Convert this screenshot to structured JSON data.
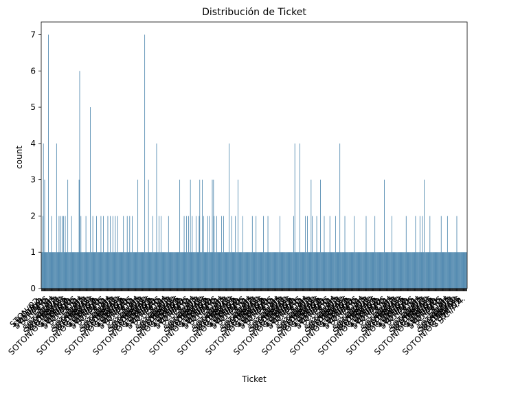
{
  "chart_data": {
    "type": "bar",
    "title": "Distribución de Ticket",
    "xlabel": "Ticket",
    "ylabel": "count",
    "ylim": [
      0,
      7.35
    ],
    "yticks": [
      0,
      1,
      2,
      3,
      4,
      5,
      6,
      7
    ],
    "bar_color": "#3274a1",
    "grid": false,
    "legend": "none",
    "category_count": 681,
    "x_tick_labels_note": "681 rotated ticket labels overlap into an illegible band; legible fragments below",
    "visible_tick_label_fragments": [
      "STON/O2.",
      "S.C./A.4.",
      "SOTON/O.",
      "STON/O 2.",
      "SC/PARIS",
      "F.C.C.",
      "C.A.",
      "SC/AH",
      "A/5",
      "SOTON/OQ",
      "STON/O2 3",
      "SOTON/O.Q.",
      "SOTON/O2",
      "SC/A.3",
      "SOTON/OQ 392076"
    ],
    "notable_counts": [
      {
        "category_index": 3,
        "value": 4
      },
      {
        "category_index": 5,
        "value": 3
      },
      {
        "category_index": 11,
        "value": 7
      },
      {
        "category_index": 24,
        "value": 4
      },
      {
        "category_index": 42,
        "value": 3
      },
      {
        "category_index": 60,
        "value": 3
      },
      {
        "category_index": 61,
        "value": 6
      },
      {
        "category_index": 78,
        "value": 5
      },
      {
        "category_index": 154,
        "value": 3
      },
      {
        "category_index": 165,
        "value": 7
      },
      {
        "category_index": 171,
        "value": 3
      },
      {
        "category_index": 184,
        "value": 4
      },
      {
        "category_index": 221,
        "value": 3
      },
      {
        "category_index": 238,
        "value": 3
      },
      {
        "category_index": 253,
        "value": 3
      },
      {
        "category_index": 257,
        "value": 3
      },
      {
        "category_index": 273,
        "value": 3
      },
      {
        "category_index": 275,
        "value": 3
      },
      {
        "category_index": 300,
        "value": 4
      },
      {
        "category_index": 314,
        "value": 3
      },
      {
        "category_index": 405,
        "value": 4
      },
      {
        "category_index": 413,
        "value": 4
      },
      {
        "category_index": 431,
        "value": 3
      },
      {
        "category_index": 446,
        "value": 3
      },
      {
        "category_index": 477,
        "value": 4
      },
      {
        "category_index": 548,
        "value": 3
      },
      {
        "category_index": 612,
        "value": 3
      }
    ],
    "count_two_indices": [
      2,
      16,
      28,
      31,
      33,
      35,
      38,
      48,
      63,
      71,
      82,
      88,
      95,
      99,
      106,
      110,
      114,
      118,
      122,
      131,
      137,
      141,
      145,
      178,
      188,
      191,
      203,
      228,
      232,
      235,
      241,
      247,
      252,
      259,
      266,
      268,
      276,
      280,
      288,
      291,
      304,
      310,
      322,
      337,
      343,
      355,
      362,
      381,
      403,
      422,
      425,
      433,
      440,
      452,
      461,
      470,
      485,
      500,
      519,
      533,
      560,
      583,
      598,
      605,
      609,
      621,
      639,
      649,
      664
    ],
    "default_value": 1
  }
}
